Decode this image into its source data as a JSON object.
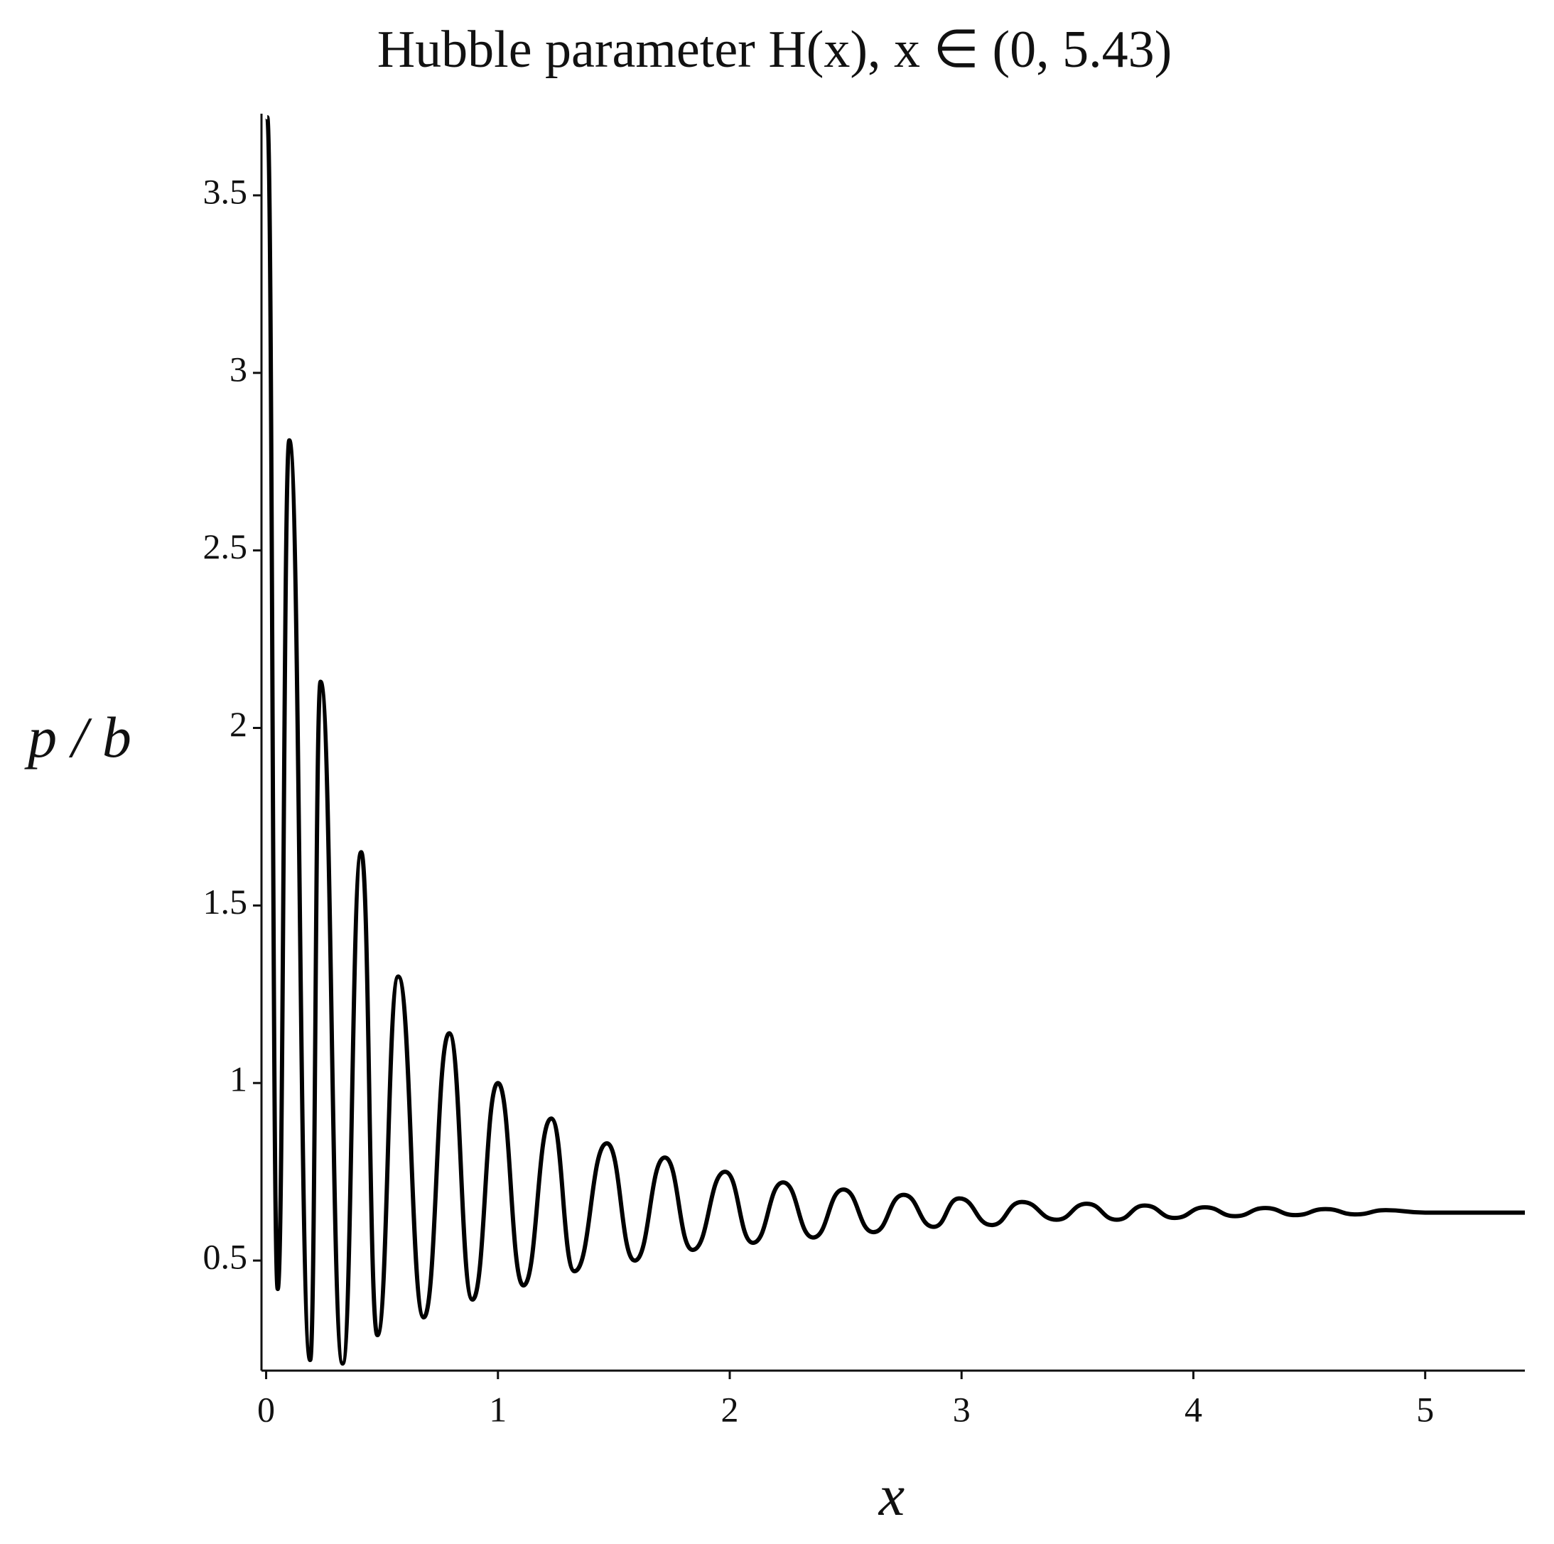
{
  "chart_data": {
    "type": "line",
    "title": "Hubble parameter H(x), x ∈ (0, 5.43)",
    "x_label": "x",
    "y_label": "p / b",
    "xlim": [
      -0.02,
      5.43
    ],
    "ylim": [
      0.19,
      3.73
    ],
    "xticks": [
      0,
      1,
      2,
      3,
      4,
      5
    ],
    "yticks": [
      0.5,
      1,
      1.5,
      2,
      2.5,
      3,
      3.5
    ],
    "series": [
      {
        "color": "#000000",
        "x": [
          0.005,
          0.05,
          0.1,
          0.19,
          0.235,
          0.33,
          0.41,
          0.48,
          0.57,
          0.68,
          0.79,
          0.89,
          1.0,
          1.11,
          1.23,
          1.33,
          1.47,
          1.59,
          1.72,
          1.84,
          1.98,
          2.1,
          2.23,
          2.36,
          2.49,
          2.62,
          2.75,
          2.88,
          2.99,
          3.13,
          3.26,
          3.41,
          3.54,
          3.67,
          3.79,
          3.92,
          4.05,
          4.18,
          4.31,
          4.44,
          4.57,
          4.7,
          4.83,
          5.0,
          5.43
        ],
        "values": [
          3.72,
          0.42,
          2.81,
          0.22,
          2.13,
          0.21,
          1.65,
          0.29,
          1.3,
          0.34,
          1.14,
          0.39,
          1.0,
          0.43,
          0.9,
          0.47,
          0.83,
          0.5,
          0.79,
          0.53,
          0.75,
          0.55,
          0.72,
          0.565,
          0.7,
          0.58,
          0.685,
          0.595,
          0.675,
          0.6,
          0.665,
          0.615,
          0.66,
          0.615,
          0.655,
          0.62,
          0.65,
          0.625,
          0.648,
          0.628,
          0.645,
          0.63,
          0.642,
          0.635,
          0.635
        ]
      }
    ]
  }
}
